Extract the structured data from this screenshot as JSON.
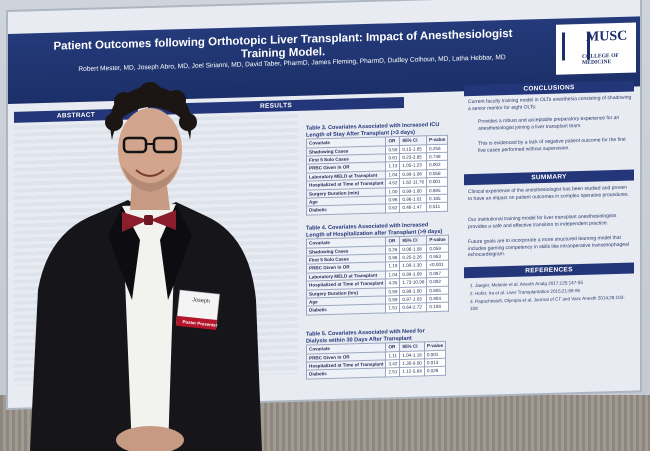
{
  "poster": {
    "title": "Patient Outcomes following Orthotopic Liver Transplant: Impact of Anesthesiologist Training Model.",
    "authors": "Robert Mester, MD, Joseph Abro, MD, Joel Sirianni, MD, David Taber, PharmD, James Fleming, PharmD, Dudley Colhoun, MD, Latha Hebbar, MD",
    "logo_text": "MUSC",
    "logo_subtext": "COLLEGE OF MEDICINE",
    "sections": {
      "abstract": "ABSTRACT",
      "results": "RESULTS",
      "conclusions": "CONCLUSIONS",
      "summary": "SUMMARY",
      "references": "REFERENCES"
    },
    "conclusions": {
      "text": "Current faculty training model in OLTs anesthesia consisting of shadowing a senior mentor for eight OLTs:",
      "bullets": [
        "Provides a robust and acceptable preparatory experience for an anesthesiologist joining a liver transplant team.",
        "This is evidenced by a lack of negative patient outcome for the first five cases performed without supervision."
      ]
    },
    "summary": {
      "p1": "Clinical experience of the anesthesiologist has been studied and proven to have an impact on patient outcomes in complex operative procedures.",
      "p2": "Our institutional training model for liver transplant anesthesiologists provides a safe and effective transition to independent practice.",
      "p3": "Future goals are to incorporate a more structured learning model that includes gaming competency in skills like intraoperative transesophageal echocardiogram."
    },
    "references": [
      "1. Jaeger, Melanie et al. Anesth Analg 2017;125:147-55",
      "2. Hofer, Ira et al. Liver Transplantation 2015;21:89-95",
      "3. Papachristofi, Olympia et al. Journal of CT and Vasc Anesth 2014;28:103-109"
    ],
    "table3": {
      "caption": "Table 3. Covariates Associated with Increased ICU Length of Stay After Transplant (>3 days)",
      "header": [
        "Covariate",
        "OR",
        "95% CI",
        "P-value"
      ],
      "rows": [
        [
          "Shadowing Cases",
          "0.59",
          "0.15-1.65",
          "0.256"
        ],
        [
          "First 5 Solo Cases",
          "0.81",
          "0.23-2.85",
          "0.748"
        ],
        [
          "PRBC Given in OR",
          "1.13",
          "1.05-1.23",
          "0.002"
        ],
        [
          "Laboratory MELD at Transplant",
          "1.04",
          "0.99-1.08",
          "0.058"
        ],
        [
          "Hospitalized at Time of Transplant",
          "4.52",
          "1.62-11.76",
          "0.001"
        ],
        [
          "Surgery Duration (min)",
          "1.00",
          "0.99-1.00",
          "0.895"
        ],
        [
          "Age",
          "0.96",
          "0.96-1.01",
          "0.185"
        ],
        [
          "Diabetic",
          "0.62",
          "0.46-1.47",
          "0.511"
        ]
      ]
    },
    "table4": {
      "caption": "Table 4. Covariates Associated with Increased Length of Hospitalization after Transplant (>9 days)",
      "header": [
        "Covariate",
        "OR",
        "95% CI",
        "P-value"
      ],
      "rows": [
        [
          "Shadowing Cases",
          "0.26",
          "0.06-1.08",
          "0.059"
        ],
        [
          "First 5 Solo Cases",
          "0.96",
          "0.25-3.26",
          "0.953"
        ],
        [
          "PRBC Given in OR",
          "1.19",
          "1.09-1.30",
          "<0.001"
        ],
        [
          "Laboratory MELD at Transplant",
          "1.04",
          "0.99-1.09",
          "0.087"
        ],
        [
          "Hospitalized at Time of Transplant",
          "4.35",
          "1.73-10.98",
          "0.002"
        ],
        [
          "Surgery Duration (hrs)",
          "0.99",
          "0.99-1.00",
          "0.605"
        ],
        [
          "Age",
          "0.99",
          "0.97-1.03",
          "0.904"
        ],
        [
          "Diabetic",
          "1.51",
          "0.64-2.72",
          "0.108"
        ]
      ]
    },
    "table5": {
      "caption": "Table 5. Covariates Associated with Need for Dialysis within 30 Days After Transplant",
      "header": [
        "Covariate",
        "OR",
        "95% CI",
        "P-value"
      ],
      "rows": [
        [
          "PRBC Given in OR",
          "1.11",
          "1.04-1.18",
          "0.001"
        ],
        [
          "Hospitalized at Time of Transplant",
          "3.42",
          "1.30-9.00",
          "0.013"
        ],
        [
          "Diabetic",
          "2.51",
          "1.12-5.64",
          "0.026"
        ]
      ]
    }
  },
  "badge": {
    "name": "Joseph",
    "ribbon": "Poster Presenter"
  },
  "colors": {
    "banner": "#1c2f68",
    "section_header": "#24367a",
    "poster_background": "#e8ecf2",
    "jacket": "#15151a",
    "bow_tie": "#8c1d2c"
  }
}
